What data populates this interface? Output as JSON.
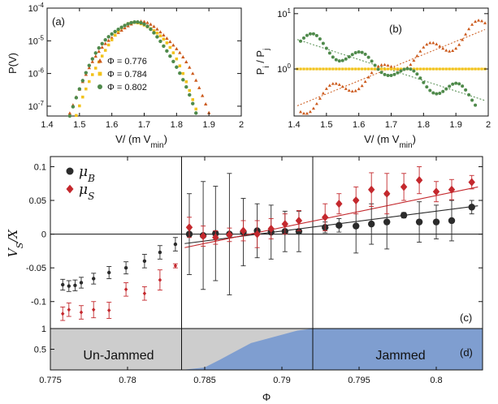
{
  "chart_data": [
    {
      "id": "a",
      "type": "scatter",
      "panel_label": "(a)",
      "xlabel": "V/ (m V",
      "xlabel_sub": "min",
      "xlabel_close": ")",
      "ylabel": "P(V)",
      "xlim": [
        1.4,
        2.0
      ],
      "ylim_log10": [
        -7.3,
        -4
      ],
      "log_y": true,
      "x_ticks": [
        "1.4",
        "1.5",
        "1.6",
        "1.7",
        "1.8",
        "1.9",
        "2"
      ],
      "y_ticks": [
        {
          "exp": -7,
          "base": "10",
          "power": "-7"
        },
        {
          "exp": -6,
          "base": "10",
          "power": "-6"
        },
        {
          "exp": -5,
          "base": "10",
          "power": "-5"
        },
        {
          "exp": -4,
          "base": "10",
          "power": "-4"
        }
      ],
      "series": [
        {
          "name": "Φ = 0.776",
          "color": "#cc5a1c",
          "marker": "triangle",
          "center": 1.685,
          "width": 0.14,
          "xmin": 1.45,
          "xmax": 1.96,
          "step": 0.01
        },
        {
          "name": "Φ = 0.784",
          "color": "#f2c21a",
          "marker": "square",
          "center": 1.68,
          "width": 0.12,
          "xmin": 1.45,
          "xmax": 1.92,
          "step": 0.01
        },
        {
          "name": "Φ = 0.802",
          "color": "#4f8a4b",
          "marker": "circle",
          "center": 1.665,
          "width": 0.125,
          "xmin": 1.41,
          "xmax": 1.93,
          "step": 0.01
        }
      ],
      "peak_log10": -4.45
    },
    {
      "id": "b",
      "type": "scatter",
      "panel_label": "(b)",
      "xlabel": "V/ (m V",
      "xlabel_sub": "min",
      "xlabel_close": ")",
      "ylabel": "P",
      "ylabel_sub1": "i",
      "ylabel_sep": " / P",
      "ylabel_sub2": "j",
      "xlim": [
        1.4,
        2.0
      ],
      "ylim_log10": [
        -0.85,
        1.1
      ],
      "log_y": true,
      "x_ticks": [
        "1.4",
        "1.5",
        "1.6",
        "1.7",
        "1.8",
        "1.9",
        "2"
      ],
      "y_ticks": [
        {
          "exp": 0,
          "base": "10",
          "power": "0"
        },
        {
          "exp": 1,
          "base": "10",
          "power": "1"
        }
      ],
      "series": [
        {
          "color": "#cc5a1c",
          "marker": "triangle",
          "slope": 2.5,
          "xmin": 1.42,
          "xmax": 1.99
        },
        {
          "color": "#f2c21a",
          "marker": "square",
          "slope": 0.0,
          "xmin": 1.41,
          "xmax": 1.99
        },
        {
          "color": "#4f8a4b",
          "marker": "circle",
          "slope": -2.0,
          "xmin": 1.42,
          "xmax": 1.96
        }
      ],
      "pivot_x": 1.69
    },
    {
      "id": "c",
      "type": "scatter",
      "panel_label": "(c)",
      "ylabel_main": "V",
      "ylabel_sub": "S",
      "ylabel_tail": "/X",
      "xlim": [
        0.775,
        0.803
      ],
      "ylim": [
        -0.14,
        0.115
      ],
      "y_ticks": [
        "0.1",
        "0.05",
        "0",
        "-0.05",
        "-0.1"
      ],
      "y_tick_values": [
        0.1,
        0.05,
        0,
        -0.05,
        -0.1
      ],
      "vlines": [
        0.7835,
        0.792
      ],
      "legend": [
        {
          "symbol": "μ",
          "sub": "B",
          "color": "#2b2b2b",
          "marker": "circle"
        },
        {
          "symbol": "μ",
          "sub": "S",
          "color": "#c4282d",
          "marker": "diamond"
        }
      ],
      "series": [
        {
          "name": "μB",
          "color": "#2b2b2b",
          "marker": "circle",
          "points": [
            {
              "x": 0.7758,
              "y": -0.075,
              "e": 0.008,
              "big": false
            },
            {
              "x": 0.7762,
              "y": -0.077,
              "e": 0.008,
              "big": false
            },
            {
              "x": 0.7766,
              "y": -0.076,
              "e": 0.008,
              "big": false
            },
            {
              "x": 0.777,
              "y": -0.072,
              "e": 0.008,
              "big": false
            },
            {
              "x": 0.7778,
              "y": -0.066,
              "e": 0.008,
              "big": false
            },
            {
              "x": 0.7788,
              "y": -0.057,
              "e": 0.009,
              "big": false
            },
            {
              "x": 0.7799,
              "y": -0.05,
              "e": 0.009,
              "big": false
            },
            {
              "x": 0.7811,
              "y": -0.04,
              "e": 0.01,
              "big": false
            },
            {
              "x": 0.7821,
              "y": -0.027,
              "e": 0.01,
              "big": false
            },
            {
              "x": 0.7831,
              "y": -0.015,
              "e": 0.01,
              "big": false
            },
            {
              "x": 0.784,
              "y": 0.0,
              "e": 0.06,
              "big": true
            },
            {
              "x": 0.7849,
              "y": -0.002,
              "e": 0.08,
              "big": true
            },
            {
              "x": 0.7857,
              "y": 0.001,
              "e": 0.07,
              "big": true
            },
            {
              "x": 0.7866,
              "y": 0.0,
              "e": 0.09,
              "big": true
            },
            {
              "x": 0.7875,
              "y": 0.003,
              "e": 0.05,
              "big": true
            },
            {
              "x": 0.7884,
              "y": 0.005,
              "e": 0.04,
              "big": true
            },
            {
              "x": 0.7893,
              "y": 0.003,
              "e": 0.04,
              "big": true
            },
            {
              "x": 0.7902,
              "y": 0.004,
              "e": 0.03,
              "big": true
            },
            {
              "x": 0.7911,
              "y": 0.004,
              "e": 0.03,
              "big": true
            },
            {
              "x": 0.7928,
              "y": 0.01,
              "e": 0.008,
              "big": true
            },
            {
              "x": 0.7937,
              "y": 0.013,
              "e": 0.01,
              "big": true
            },
            {
              "x": 0.7948,
              "y": 0.012,
              "e": 0.04,
              "big": true
            },
            {
              "x": 0.7958,
              "y": 0.015,
              "e": 0.03,
              "big": true
            },
            {
              "x": 0.7968,
              "y": 0.018,
              "e": 0.04,
              "big": true
            },
            {
              "x": 0.7979,
              "y": 0.028,
              "e": 0.004,
              "big": true
            },
            {
              "x": 0.7989,
              "y": 0.018,
              "e": 0.03,
              "big": true
            },
            {
              "x": 0.8,
              "y": 0.018,
              "e": 0.025,
              "big": true
            },
            {
              "x": 0.801,
              "y": 0.02,
              "e": 0.03,
              "big": true
            },
            {
              "x": 0.8023,
              "y": 0.04,
              "e": 0.01,
              "big": true
            }
          ]
        },
        {
          "name": "μS",
          "color": "#c4282d",
          "marker": "diamond",
          "points": [
            {
              "x": 0.7758,
              "y": -0.118,
              "e": 0.01,
              "big": false
            },
            {
              "x": 0.7762,
              "y": -0.112,
              "e": 0.01,
              "big": false
            },
            {
              "x": 0.777,
              "y": -0.116,
              "e": 0.01,
              "big": false
            },
            {
              "x": 0.7778,
              "y": -0.112,
              "e": 0.012,
              "big": false
            },
            {
              "x": 0.7788,
              "y": -0.113,
              "e": 0.012,
              "big": false
            },
            {
              "x": 0.7799,
              "y": -0.082,
              "e": 0.01,
              "big": false
            },
            {
              "x": 0.7811,
              "y": -0.088,
              "e": 0.01,
              "big": false
            },
            {
              "x": 0.7821,
              "y": -0.068,
              "e": 0.015,
              "big": false
            },
            {
              "x": 0.7831,
              "y": -0.047,
              "e": 0.003,
              "big": false
            },
            {
              "x": 0.784,
              "y": 0.01,
              "e": 0.015,
              "big": true
            },
            {
              "x": 0.7849,
              "y": -0.003,
              "e": 0.015,
              "big": true
            },
            {
              "x": 0.7857,
              "y": -0.005,
              "e": 0.01,
              "big": true
            },
            {
              "x": 0.7866,
              "y": -0.001,
              "e": 0.01,
              "big": true
            },
            {
              "x": 0.7875,
              "y": 0.005,
              "e": 0.015,
              "big": true
            },
            {
              "x": 0.7884,
              "y": 0.0,
              "e": 0.02,
              "big": true
            },
            {
              "x": 0.7893,
              "y": 0.008,
              "e": 0.015,
              "big": true
            },
            {
              "x": 0.7902,
              "y": 0.015,
              "e": 0.015,
              "big": true
            },
            {
              "x": 0.7911,
              "y": 0.02,
              "e": 0.015,
              "big": true
            },
            {
              "x": 0.7928,
              "y": 0.025,
              "e": 0.02,
              "big": true
            },
            {
              "x": 0.7937,
              "y": 0.045,
              "e": 0.015,
              "big": true
            },
            {
              "x": 0.7948,
              "y": 0.05,
              "e": 0.02,
              "big": true
            },
            {
              "x": 0.7958,
              "y": 0.066,
              "e": 0.025,
              "big": true
            },
            {
              "x": 0.7968,
              "y": 0.06,
              "e": 0.03,
              "big": true
            },
            {
              "x": 0.7979,
              "y": 0.07,
              "e": 0.02,
              "big": true
            },
            {
              "x": 0.7989,
              "y": 0.08,
              "e": 0.02,
              "big": true
            },
            {
              "x": 0.8,
              "y": 0.063,
              "e": 0.015,
              "big": true
            },
            {
              "x": 0.801,
              "y": 0.066,
              "e": 0.015,
              "big": true
            },
            {
              "x": 0.8023,
              "y": 0.077,
              "e": 0.01,
              "big": true
            }
          ]
        }
      ],
      "fits": [
        {
          "series": "μB",
          "color": "#2b2b2b",
          "x0": 0.7837,
          "y0": -0.014,
          "x1": 0.8027,
          "y1": 0.042
        },
        {
          "series": "μS",
          "color": "#c4282d",
          "x0": 0.7837,
          "y0": -0.02,
          "x1": 0.8027,
          "y1": 0.07
        }
      ]
    },
    {
      "id": "d",
      "type": "area",
      "panel_label": "(d)",
      "xlabel": "Φ",
      "xlim": [
        0.775,
        0.803
      ],
      "ylim": [
        0,
        1
      ],
      "x_ticks": [
        {
          "v": 0.775,
          "label": "0.775"
        },
        {
          "v": 0.78,
          "label": "0.78"
        },
        {
          "v": 0.785,
          "label": "0.785"
        },
        {
          "v": 0.79,
          "label": "0.79"
        },
        {
          "v": 0.795,
          "label": "0.795"
        },
        {
          "v": 0.8,
          "label": "0.8"
        }
      ],
      "y_ticks": [
        {
          "v": 1,
          "label": "1"
        },
        {
          "v": 0.5,
          "label": "0.5"
        }
      ],
      "region_labels": [
        "Un-Jammed",
        "Jammed"
      ],
      "unjammed_color": "#cdcdcd",
      "jammed_color": "#7f9ed0",
      "jammed_fraction": {
        "x": [
          0.7835,
          0.785,
          0.786,
          0.787,
          0.788,
          0.789,
          0.79,
          0.791,
          0.792
        ],
        "y": [
          0.0,
          0.06,
          0.25,
          0.45,
          0.65,
          0.75,
          0.85,
          0.95,
          1.0
        ]
      }
    }
  ]
}
